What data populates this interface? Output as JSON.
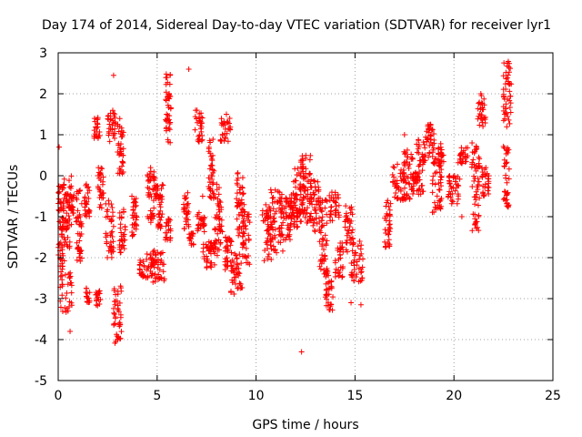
{
  "chart_data": {
    "type": "scatter",
    "title": "Day 174 of 2014, Sidereal Day-to-day VTEC variation (SDTVAR) for receiver lyr1",
    "xlabel": "GPS time / hours",
    "ylabel": "SDTVAR / TECUs",
    "xlim": [
      0,
      25
    ],
    "ylim": [
      -5,
      3
    ],
    "xticks": [
      0,
      5,
      10,
      15,
      20,
      25
    ],
    "yticks": [
      -5,
      -4,
      -3,
      -2,
      -1,
      0,
      1,
      2,
      3
    ],
    "grid": true,
    "marker": "+",
    "color": "#ff0000",
    "clusters": [
      {
        "x": [
          0.0,
          0.3
        ],
        "y": [
          -2.6,
          -0.2
        ]
      },
      {
        "x": [
          0.1,
          0.7
        ],
        "y": [
          -3.4,
          0.0
        ]
      },
      {
        "x": [
          0.4,
          0.8
        ],
        "y": [
          -1.2,
          -0.4
        ]
      },
      {
        "x": [
          0.9,
          1.2
        ],
        "y": [
          -2.1,
          -0.3
        ]
      },
      {
        "x": [
          1.3,
          1.6
        ],
        "y": [
          -1.0,
          -0.2
        ]
      },
      {
        "x": [
          1.4,
          1.6
        ],
        "y": [
          -3.1,
          -2.7
        ]
      },
      {
        "x": [
          1.8,
          2.1
        ],
        "y": [
          0.9,
          1.5
        ]
      },
      {
        "x": [
          1.9,
          2.2
        ],
        "y": [
          -3.2,
          -2.8
        ]
      },
      {
        "x": [
          2.0,
          2.3
        ],
        "y": [
          -0.8,
          0.2
        ]
      },
      {
        "x": [
          2.4,
          2.8
        ],
        "y": [
          -2.0,
          -0.6
        ]
      },
      {
        "x": [
          2.5,
          2.9
        ],
        "y": [
          0.8,
          1.6
        ]
      },
      {
        "x": [
          2.8,
          3.2
        ],
        "y": [
          -4.1,
          -2.6
        ]
      },
      {
        "x": [
          3.0,
          3.3
        ],
        "y": [
          0.0,
          1.4
        ]
      },
      {
        "x": [
          3.1,
          3.4
        ],
        "y": [
          -1.9,
          -0.8
        ]
      },
      {
        "x": [
          3.7,
          4.0
        ],
        "y": [
          -1.5,
          -0.5
        ]
      },
      {
        "x": [
          4.1,
          4.8
        ],
        "y": [
          -2.5,
          -1.9
        ]
      },
      {
        "x": [
          4.5,
          5.0
        ],
        "y": [
          -1.2,
          0.2
        ]
      },
      {
        "x": [
          4.7,
          5.4
        ],
        "y": [
          -2.6,
          -1.8
        ]
      },
      {
        "x": [
          4.9,
          5.3
        ],
        "y": [
          -1.4,
          -0.2
        ]
      },
      {
        "x": [
          5.4,
          5.7
        ],
        "y": [
          0.8,
          2.5
        ]
      },
      {
        "x": [
          5.4,
          5.7
        ],
        "y": [
          -1.6,
          -1.0
        ]
      },
      {
        "x": [
          6.3,
          6.6
        ],
        "y": [
          -1.3,
          -0.4
        ]
      },
      {
        "x": [
          6.6,
          6.9
        ],
        "y": [
          -1.7,
          -1.4
        ]
      },
      {
        "x": [
          6.9,
          7.3
        ],
        "y": [
          0.8,
          1.6
        ]
      },
      {
        "x": [
          7.0,
          7.4
        ],
        "y": [
          -1.4,
          -0.9
        ]
      },
      {
        "x": [
          7.3,
          7.9
        ],
        "y": [
          -2.3,
          -1.6
        ]
      },
      {
        "x": [
          7.6,
          7.9
        ],
        "y": [
          -0.6,
          0.9
        ]
      },
      {
        "x": [
          7.9,
          8.3
        ],
        "y": [
          -2.0,
          -0.2
        ]
      },
      {
        "x": [
          8.2,
          8.7
        ],
        "y": [
          0.8,
          1.4
        ]
      },
      {
        "x": [
          8.4,
          8.8
        ],
        "y": [
          -2.3,
          -1.5
        ]
      },
      {
        "x": [
          8.7,
          9.3
        ],
        "y": [
          -2.9,
          -1.9
        ]
      },
      {
        "x": [
          9.0,
          9.4
        ],
        "y": [
          -1.5,
          0.1
        ]
      },
      {
        "x": [
          9.3,
          9.7
        ],
        "y": [
          -2.2,
          -0.7
        ]
      },
      {
        "x": [
          10.3,
          10.8
        ],
        "y": [
          -2.1,
          -0.7
        ]
      },
      {
        "x": [
          10.7,
          11.4
        ],
        "y": [
          -1.9,
          -0.3
        ]
      },
      {
        "x": [
          11.2,
          11.8
        ],
        "y": [
          -1.6,
          -0.5
        ]
      },
      {
        "x": [
          11.7,
          12.1
        ],
        "y": [
          -1.3,
          -0.4
        ]
      },
      {
        "x": [
          11.9,
          12.5
        ],
        "y": [
          -1.0,
          0.2
        ]
      },
      {
        "x": [
          12.2,
          12.8
        ],
        "y": [
          -1.2,
          0.5
        ]
      },
      {
        "x": [
          12.7,
          13.2
        ],
        "y": [
          -1.4,
          -0.1
        ]
      },
      {
        "x": [
          13.2,
          13.6
        ],
        "y": [
          -2.4,
          -0.5
        ]
      },
      {
        "x": [
          13.5,
          13.9
        ],
        "y": [
          -3.4,
          -2.2
        ]
      },
      {
        "x": [
          13.7,
          14.2
        ],
        "y": [
          -1.1,
          -0.4
        ]
      },
      {
        "x": [
          14.0,
          14.4
        ],
        "y": [
          -2.5,
          -1.6
        ]
      },
      {
        "x": [
          14.5,
          14.9
        ],
        "y": [
          -1.9,
          -0.7
        ]
      },
      {
        "x": [
          14.8,
          15.4
        ],
        "y": [
          -2.6,
          -1.6
        ]
      },
      {
        "x": [
          16.5,
          16.8
        ],
        "y": [
          -1.9,
          -0.6
        ]
      },
      {
        "x": [
          16.9,
          17.5
        ],
        "y": [
          -0.6,
          0.3
        ]
      },
      {
        "x": [
          17.4,
          18.0
        ],
        "y": [
          -0.6,
          0.7
        ]
      },
      {
        "x": [
          17.9,
          18.2
        ],
        "y": [
          -0.2,
          0.1
        ]
      },
      {
        "x": [
          18.1,
          18.5
        ],
        "y": [
          -0.5,
          0.9
        ]
      },
      {
        "x": [
          18.5,
          19.0
        ],
        "y": [
          0.3,
          1.3
        ]
      },
      {
        "x": [
          18.9,
          19.4
        ],
        "y": [
          -0.9,
          0.8
        ]
      },
      {
        "x": [
          19.2,
          19.5
        ],
        "y": [
          0.2,
          0.6
        ]
      },
      {
        "x": [
          19.7,
          20.3
        ],
        "y": [
          -0.7,
          0.0
        ]
      },
      {
        "x": [
          20.2,
          20.7
        ],
        "y": [
          0.3,
          0.7
        ]
      },
      {
        "x": [
          20.9,
          21.3
        ],
        "y": [
          -1.4,
          0.8
        ]
      },
      {
        "x": [
          21.2,
          21.6
        ],
        "y": [
          1.2,
          2.0
        ]
      },
      {
        "x": [
          21.4,
          21.8
        ],
        "y": [
          -0.5,
          0.2
        ]
      },
      {
        "x": [
          22.5,
          22.9
        ],
        "y": [
          1.1,
          2.8
        ]
      },
      {
        "x": [
          22.5,
          22.8
        ],
        "y": [
          -0.8,
          0.8
        ]
      }
    ],
    "outliers": [
      {
        "x": 0.05,
        "y": 0.7
      },
      {
        "x": 0.6,
        "y": -3.8
      },
      {
        "x": 2.8,
        "y": 2.45
      },
      {
        "x": 5.5,
        "y": 2.4
      },
      {
        "x": 6.6,
        "y": 2.6
      },
      {
        "x": 7.3,
        "y": -0.5
      },
      {
        "x": 8.5,
        "y": 1.5
      },
      {
        "x": 12.3,
        "y": -4.3
      },
      {
        "x": 14.8,
        "y": -3.1
      },
      {
        "x": 15.3,
        "y": -3.15
      },
      {
        "x": 17.5,
        "y": 1.0
      },
      {
        "x": 20.4,
        "y": -1.0
      }
    ]
  }
}
